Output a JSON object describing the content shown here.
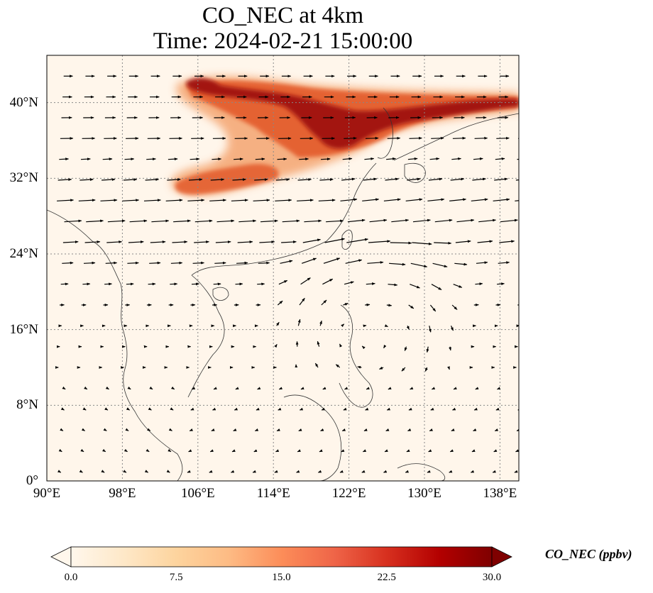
{
  "title": {
    "line1": "CO_NEC at 4km",
    "line2": "Time: 2024-02-21 15:00:00"
  },
  "map": {
    "lon_range": [
      90,
      140
    ],
    "lat_range": [
      0,
      45
    ],
    "lat_ticks": [
      {
        "value": 0,
        "label": "0°"
      },
      {
        "value": 8,
        "label": "8°N"
      },
      {
        "value": 16,
        "label": "16°N"
      },
      {
        "value": 24,
        "label": "24°N"
      },
      {
        "value": 32,
        "label": "32°N"
      },
      {
        "value": 40,
        "label": "40°N"
      }
    ],
    "lon_ticks": [
      {
        "value": 90,
        "label": "90°E"
      },
      {
        "value": 98,
        "label": "98°E"
      },
      {
        "value": 106,
        "label": "106°E"
      },
      {
        "value": 114,
        "label": "114°E"
      },
      {
        "value": 122,
        "label": "122°E"
      },
      {
        "value": 130,
        "label": "130°E"
      },
      {
        "value": 138,
        "label": "138°E"
      }
    ],
    "gridlines": true,
    "background_color": "#fff6eb",
    "plume_color_high": "#9c0d0d",
    "plume_color_mid": "#e35a2a",
    "plume_color_low": "#f4a470",
    "arrow_color": "#000000",
    "coastline_color": "#333333"
  },
  "colorbar": {
    "label": "CO_NEC (ppbv)",
    "min": 0,
    "max": 30,
    "extend": "both",
    "ticks": [
      "0.0",
      "7.5",
      "15.0",
      "22.5",
      "30.0"
    ],
    "colormap": [
      "#fff7ec",
      "#fee8c8",
      "#fdd49e",
      "#fdbb84",
      "#fc8d59",
      "#ef6548",
      "#d7301f",
      "#b30000",
      "#7f0000"
    ]
  }
}
